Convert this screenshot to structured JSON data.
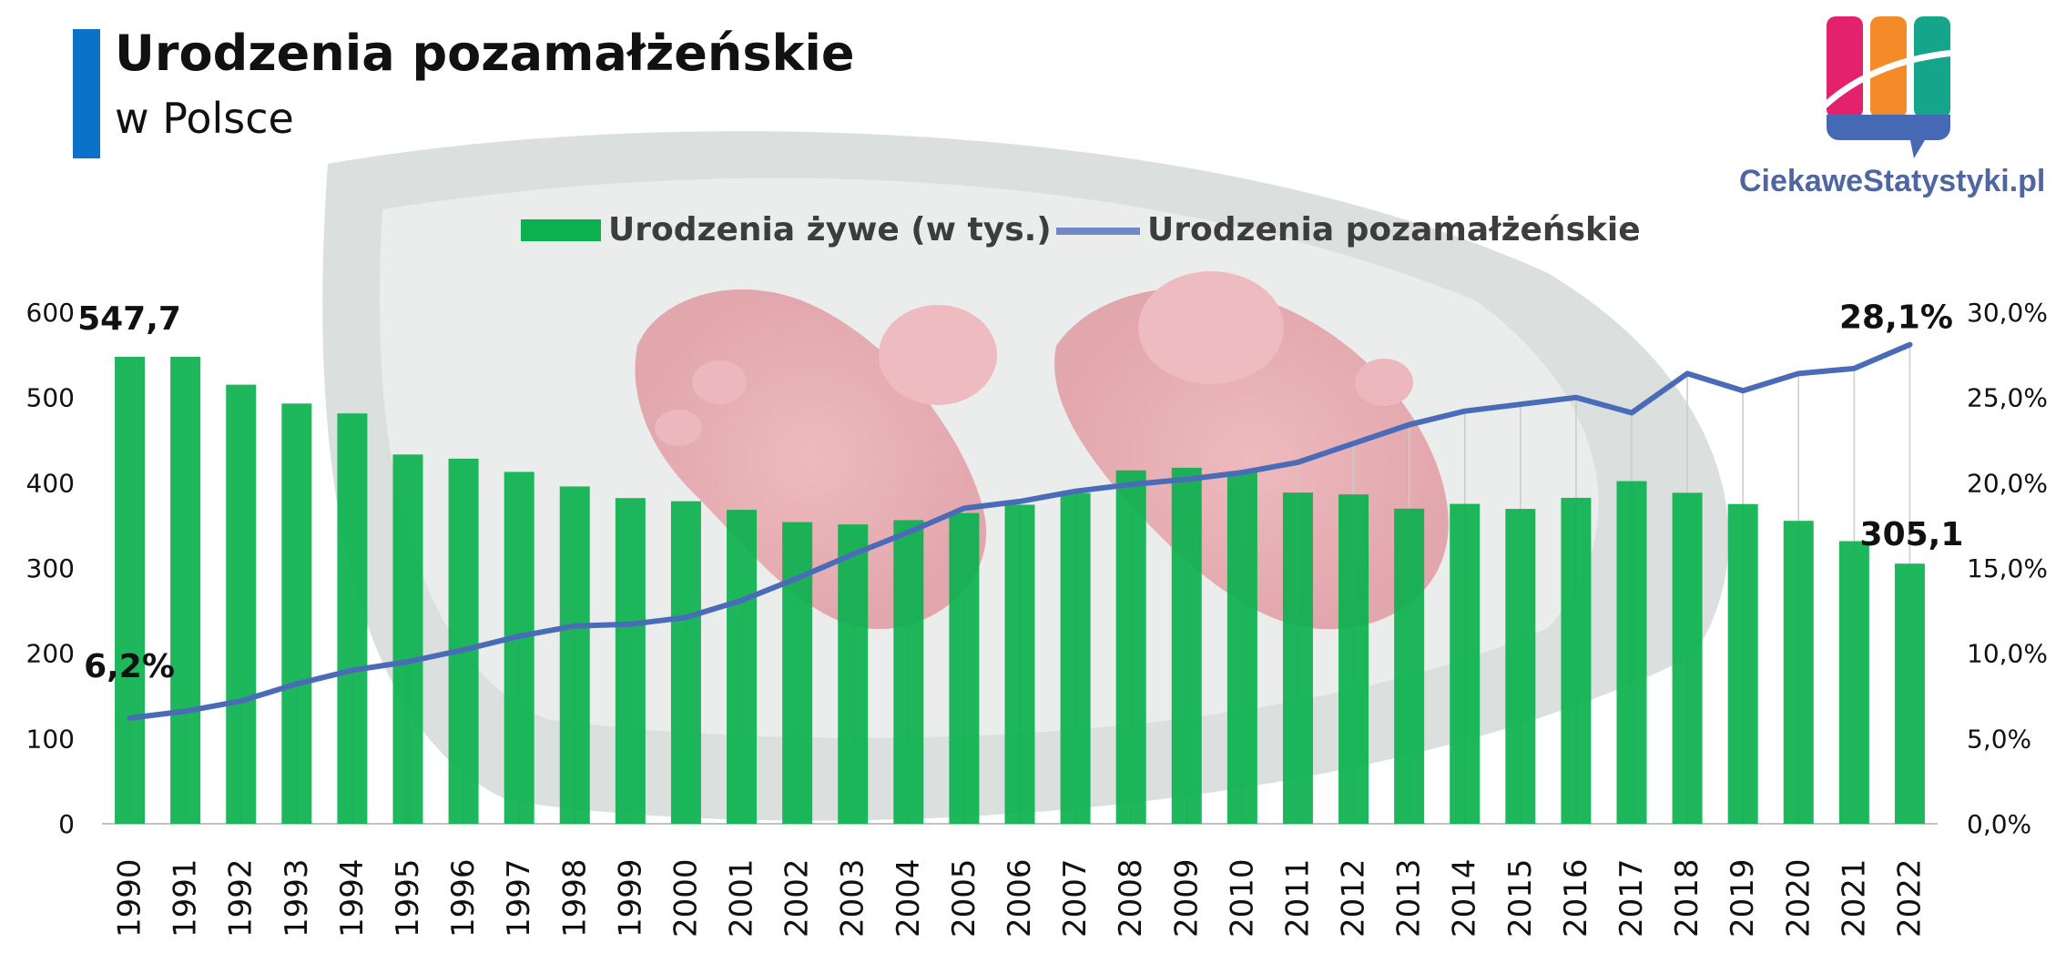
{
  "header": {
    "title": "Urodzenia pozamałżeńskie",
    "subtitle": "w Polsce"
  },
  "logo": {
    "text": "CiekaweStatystyki.pl",
    "icon": "chart-logo-icon",
    "colors": [
      "#e4216c",
      "#f58a28",
      "#14a58a",
      "#4569b5"
    ]
  },
  "background_image": "baby-feet-photo",
  "chart_data": {
    "type": "bar",
    "categories": [
      "1990",
      "1991",
      "1992",
      "1993",
      "1994",
      "1995",
      "1996",
      "1997",
      "1998",
      "1999",
      "2000",
      "2001",
      "2002",
      "2003",
      "2004",
      "2005",
      "2006",
      "2007",
      "2008",
      "2009",
      "2010",
      "2011",
      "2012",
      "2013",
      "2014",
      "2015",
      "2016",
      "2017",
      "2018",
      "2019",
      "2020",
      "2021",
      "2022"
    ],
    "series": [
      {
        "name": "Urodzenia żywe (w tys.)",
        "type": "bar",
        "axis": "left",
        "color": "#0bb14e",
        "values": [
          547.7,
          547.7,
          515,
          492.9,
          481.3,
          433.1,
          428.2,
          412.7,
          395.6,
          382.0,
          378.3,
          368.2,
          353.8,
          351.1,
          356.1,
          364.4,
          374.2,
          387.9,
          414.5,
          417.6,
          413.3,
          388.4,
          386.3,
          369.6,
          375.2,
          369.3,
          382.3,
          401.9,
          388.2,
          375.0,
          355.3,
          331.5,
          305.1
        ]
      },
      {
        "name": "Urodzenia pozamałżeńskie",
        "type": "line",
        "axis": "right",
        "color": "#4a6cb8",
        "values": [
          6.2,
          6.6,
          7.2,
          8.2,
          9.0,
          9.5,
          10.2,
          11.0,
          11.6,
          11.7,
          12.1,
          13.1,
          14.4,
          15.8,
          17.1,
          18.5,
          18.9,
          19.5,
          19.9,
          20.2,
          20.6,
          21.2,
          22.3,
          23.4,
          24.2,
          24.6,
          25.0,
          24.1,
          26.4,
          25.4,
          26.4,
          26.7,
          28.1
        ]
      }
    ],
    "left_axis": {
      "ylim": [
        0,
        600
      ],
      "ticks": [
        "0",
        "100",
        "200",
        "300",
        "400",
        "500",
        "600"
      ]
    },
    "right_axis": {
      "ylim": [
        0,
        30
      ],
      "ticks": [
        "0,0%",
        "5,0%",
        "10,0%",
        "15,0%",
        "20,0%",
        "25,0%",
        "30,0%"
      ]
    },
    "annotations": {
      "bar_first": "547,7",
      "bar_last": "305,1",
      "line_first": "6,2%",
      "line_last": "28,1%"
    },
    "legend_position": "top-center",
    "grid": false
  }
}
